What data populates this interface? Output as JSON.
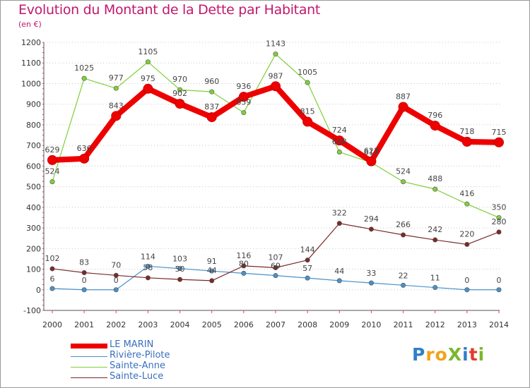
{
  "title": "Evolution du Montant de la Dette par Habitant",
  "subtitle": "(en €)",
  "logo": {
    "text": "ProXiti",
    "letters": [
      {
        "ch": "P",
        "color": "#2f7fc8"
      },
      {
        "ch": "r",
        "color": "#f3a21b"
      },
      {
        "ch": "o",
        "color": "#f3a21b"
      },
      {
        "ch": "X",
        "color": "#79b82c"
      },
      {
        "ch": "i",
        "color": "#2f7fc8"
      },
      {
        "ch": "t",
        "color": "#e23c2c"
      },
      {
        "ch": "i",
        "color": "#79b82c"
      }
    ]
  },
  "chart_data": {
    "type": "line",
    "title": "Evolution du Montant de la Dette par Habitant",
    "subtitle": "(en €)",
    "x": [
      "2000",
      "2001",
      "2002",
      "2003",
      "2004",
      "2005",
      "2006",
      "2007",
      "2008",
      "2009",
      "2010",
      "2011",
      "2012",
      "2013",
      "2014"
    ],
    "ylim": [
      -100,
      1200
    ],
    "yticks": [
      -100,
      0,
      100,
      200,
      300,
      400,
      500,
      600,
      700,
      800,
      900,
      1000,
      1100,
      1200
    ],
    "grid": "horizontal dotted",
    "legend": "bottom-left",
    "series": [
      {
        "name": "LE MARIN",
        "color": "#ee0000",
        "values": [
          629,
          636,
          843,
          975,
          902,
          837,
          936,
          987,
          815,
          724,
          623,
          887,
          796,
          718,
          715
        ]
      },
      {
        "name": "Rivière-Pilote",
        "color": "#4a90c8",
        "values": [
          6,
          0,
          0,
          114,
          103,
          91,
          80,
          69,
          57,
          44,
          33,
          22,
          11,
          0,
          0
        ]
      },
      {
        "name": "Sainte-Anne",
        "color": "#7fcf3a",
        "values": [
          524,
          1025,
          977,
          1105,
          970,
          960,
          859,
          1143,
          1005,
          668,
          617,
          524,
          488,
          416,
          350
        ]
      },
      {
        "name": "Sainte-Luce",
        "color": "#7a2a2a",
        "values": [
          102,
          83,
          70,
          58,
          50,
          44,
          116,
          107,
          144,
          322,
          294,
          266,
          242,
          220,
          280
        ]
      }
    ],
    "labels": {
      "LE MARIN": [
        "629",
        "636",
        "843",
        "975",
        "902",
        "837",
        "936",
        "987",
        "815",
        "724",
        "623",
        "887",
        "796",
        "718",
        "715"
      ],
      "Rivière-Pilote": [
        "6",
        "0",
        "0",
        "114",
        "103",
        "91",
        "80",
        "69",
        "57",
        "44",
        "33",
        "22",
        "11",
        "0",
        "0"
      ],
      "Sainte-Anne": [
        "524",
        "1025",
        "977",
        "1105",
        "970",
        "960",
        "859",
        "1143",
        "1005",
        "668",
        "617",
        "524",
        "488",
        "416",
        "350"
      ],
      "Sainte-Luce": [
        "102",
        "83",
        "70",
        "58",
        "50",
        "44",
        "116",
        "107",
        "144",
        "322",
        "294",
        "266",
        "242",
        "220",
        "280"
      ]
    }
  }
}
